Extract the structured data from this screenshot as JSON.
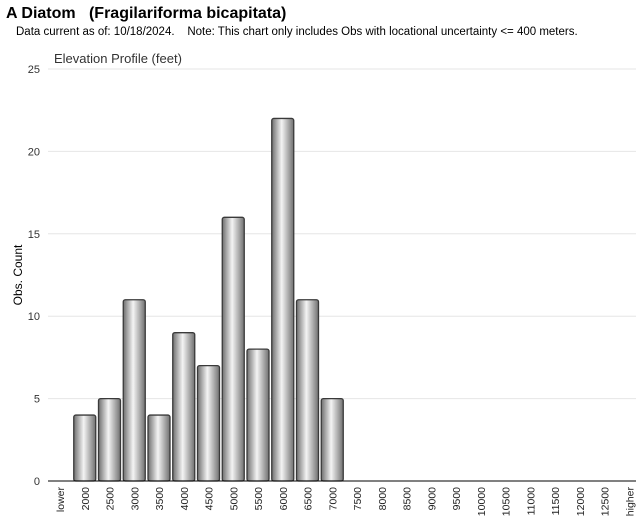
{
  "header": {
    "title": "A Diatom   (Fragilariforma bicapitata)",
    "subtitle": "Data current as of: 10/18/2024.    Note: This chart only includes Obs with locational uncertainty <= 400 meters."
  },
  "chart_data": {
    "type": "bar",
    "title": "Elevation Profile (feet)",
    "xlabel": "",
    "ylabel": "Obs. Count",
    "ylim": [
      0,
      25
    ],
    "yticks": [
      0,
      5,
      10,
      15,
      20,
      25
    ],
    "grid": true,
    "categories": [
      "lower",
      "2000",
      "2500",
      "3000",
      "3500",
      "4000",
      "4500",
      "5000",
      "5500",
      "6000",
      "6500",
      "7000",
      "7500",
      "8000",
      "8500",
      "9000",
      "9500",
      "10000",
      "10500",
      "11000",
      "11500",
      "12000",
      "12500",
      "higher"
    ],
    "values": [
      0,
      4,
      5,
      11,
      4,
      9,
      7,
      16,
      8,
      22,
      11,
      5,
      0,
      0,
      0,
      0,
      0,
      0,
      0,
      0,
      0,
      0,
      0,
      0
    ],
    "colors": {
      "bar_dark": "#6e6e6e",
      "bar_light": "#f2f2f2",
      "bar_stroke": "#3a3a3a",
      "grid": "#e6e6e6",
      "axis": "#000000"
    }
  }
}
